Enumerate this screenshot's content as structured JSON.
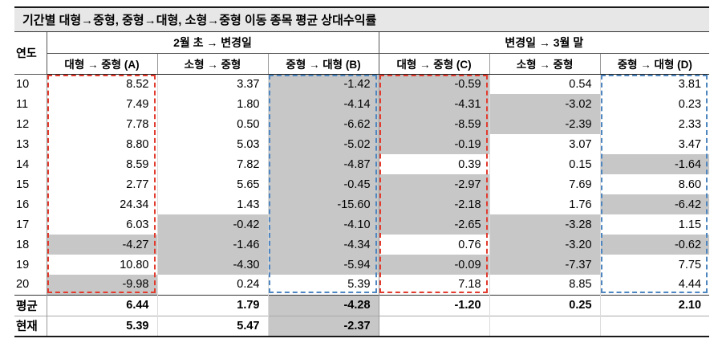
{
  "title": "기간별 대형→중형, 중형→대형, 소형→중형 이동 종목 평균 상대수익률",
  "chart_data": {
    "type": "table",
    "title": "기간별 대형→중형, 중형→대형, 소형→중형 이동 종목 평균 상대수익률",
    "year_header": "연도",
    "column_groups": [
      {
        "label": "2월 초 → 변경일",
        "columns": [
          "대형 → 중형 (A)",
          "소형 → 중형",
          "중형 → 대형 (B)"
        ]
      },
      {
        "label": "변경일 → 3월 말",
        "columns": [
          "대형 → 중형 (C)",
          "소형 → 중형",
          "중형 → 대형 (D)"
        ]
      }
    ],
    "rows": [
      {
        "year": "10",
        "values": [
          "8.52",
          "3.37",
          "-1.42",
          "-0.59",
          "0.54",
          "3.81"
        ],
        "shaded": [
          2,
          3
        ]
      },
      {
        "year": "11",
        "values": [
          "7.49",
          "1.80",
          "-4.14",
          "-4.31",
          "-3.02",
          "0.23"
        ],
        "shaded": [
          2,
          3,
          4
        ]
      },
      {
        "year": "12",
        "values": [
          "7.78",
          "0.50",
          "-6.62",
          "-8.59",
          "-2.39",
          "2.33"
        ],
        "shaded": [
          2,
          3,
          4
        ]
      },
      {
        "year": "13",
        "values": [
          "8.80",
          "5.03",
          "-5.02",
          "-0.19",
          "3.07",
          "3.47"
        ],
        "shaded": [
          2,
          3
        ]
      },
      {
        "year": "14",
        "values": [
          "8.59",
          "7.82",
          "-4.87",
          "0.39",
          "0.15",
          "-1.64"
        ],
        "shaded": [
          2,
          5
        ]
      },
      {
        "year": "15",
        "values": [
          "2.77",
          "5.65",
          "-0.45",
          "-2.97",
          "7.69",
          "8.60"
        ],
        "shaded": [
          2,
          3
        ]
      },
      {
        "year": "16",
        "values": [
          "24.34",
          "1.43",
          "-15.60",
          "-2.18",
          "1.76",
          "-6.42"
        ],
        "shaded": [
          2,
          3,
          5
        ]
      },
      {
        "year": "17",
        "values": [
          "6.03",
          "-0.42",
          "-4.10",
          "-2.65",
          "-3.28",
          "1.15"
        ],
        "shaded": [
          1,
          2,
          3,
          4
        ]
      },
      {
        "year": "18",
        "values": [
          "-4.27",
          "-1.46",
          "-4.34",
          "0.76",
          "-3.20",
          "-0.62"
        ],
        "shaded": [
          0,
          1,
          2,
          4,
          5
        ]
      },
      {
        "year": "19",
        "values": [
          "10.80",
          "-4.30",
          "-5.94",
          "-0.09",
          "-7.37",
          "7.75"
        ],
        "shaded": [
          1,
          2,
          3,
          4
        ]
      },
      {
        "year": "20",
        "values": [
          "-9.98",
          "0.24",
          "5.39",
          "7.18",
          "8.85",
          "4.44"
        ],
        "shaded": [
          0
        ]
      }
    ],
    "summary_rows": [
      {
        "year": "평균",
        "values": [
          "6.44",
          "1.79",
          "-4.28",
          "-1.20",
          "0.25",
          "2.10"
        ],
        "shaded": [
          2
        ]
      },
      {
        "year": "현재",
        "values": [
          "5.39",
          "5.47",
          "-2.37",
          "",
          "",
          ""
        ],
        "shaded": [
          2
        ]
      }
    ],
    "highlights": [
      {
        "column": "대형 → 중형 (A)",
        "color": "red"
      },
      {
        "column": "중형 → 대형 (B)",
        "color": "blue"
      },
      {
        "column": "대형 → 중형 (C)",
        "color": "red"
      },
      {
        "column": "중형 → 대형 (D)",
        "color": "blue"
      }
    ]
  },
  "colors": {
    "title_bg": "#e7e7e7",
    "shaded_cell": "#c7c7c7",
    "red_dash": "#e23b2e",
    "blue_dash": "#4e86c0"
  }
}
